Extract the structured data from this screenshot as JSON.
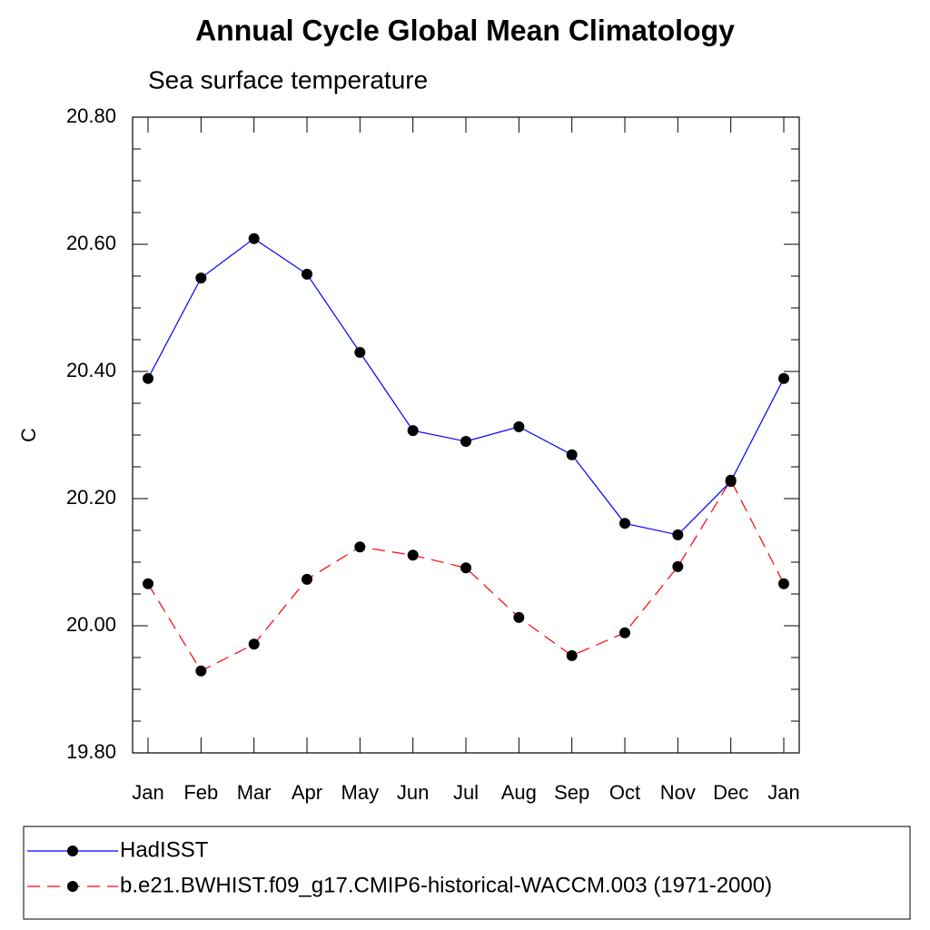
{
  "chart_data": {
    "type": "line",
    "title": "Annual Cycle Global Mean Climatology",
    "subtitle": "Sea surface temperature",
    "y_label": "C",
    "categories": [
      "Jan",
      "Feb",
      "Mar",
      "Apr",
      "May",
      "Jun",
      "Jul",
      "Aug",
      "Sep",
      "Oct",
      "Nov",
      "Dec",
      "Jan"
    ],
    "series": [
      {
        "name": "HadISST",
        "color": "#0000ff",
        "line_style": "solid",
        "values": [
          20.389,
          20.547,
          20.609,
          20.553,
          20.43,
          20.307,
          20.29,
          20.313,
          20.269,
          20.161,
          20.143,
          20.227,
          20.389
        ]
      },
      {
        "name": "b.e21.BWHIST.f09_g17.CMIP6-historical-WACCM.003 (1971-2000)",
        "color": "#ff0000",
        "line_style": "dashed",
        "values": [
          20.066,
          19.929,
          19.971,
          20.073,
          20.124,
          20.111,
          20.091,
          20.013,
          19.953,
          19.989,
          20.093,
          20.229,
          20.066
        ]
      }
    ],
    "ylim": [
      19.8,
      20.8
    ],
    "yticks": [
      {
        "value": 19.8,
        "label": "19.80"
      },
      {
        "value": 20.0,
        "label": "20.00"
      },
      {
        "value": 20.2,
        "label": "20.20"
      },
      {
        "value": 20.4,
        "label": "20.40"
      },
      {
        "value": 20.6,
        "label": "20.60"
      },
      {
        "value": 20.8,
        "label": "20.80"
      }
    ],
    "yminorticks": [
      19.85,
      19.9,
      19.95,
      20.05,
      20.1,
      20.15,
      20.25,
      20.3,
      20.35,
      20.45,
      20.5,
      20.55,
      20.65,
      20.7,
      20.75
    ],
    "marker_color": "#000000",
    "grid": false
  }
}
